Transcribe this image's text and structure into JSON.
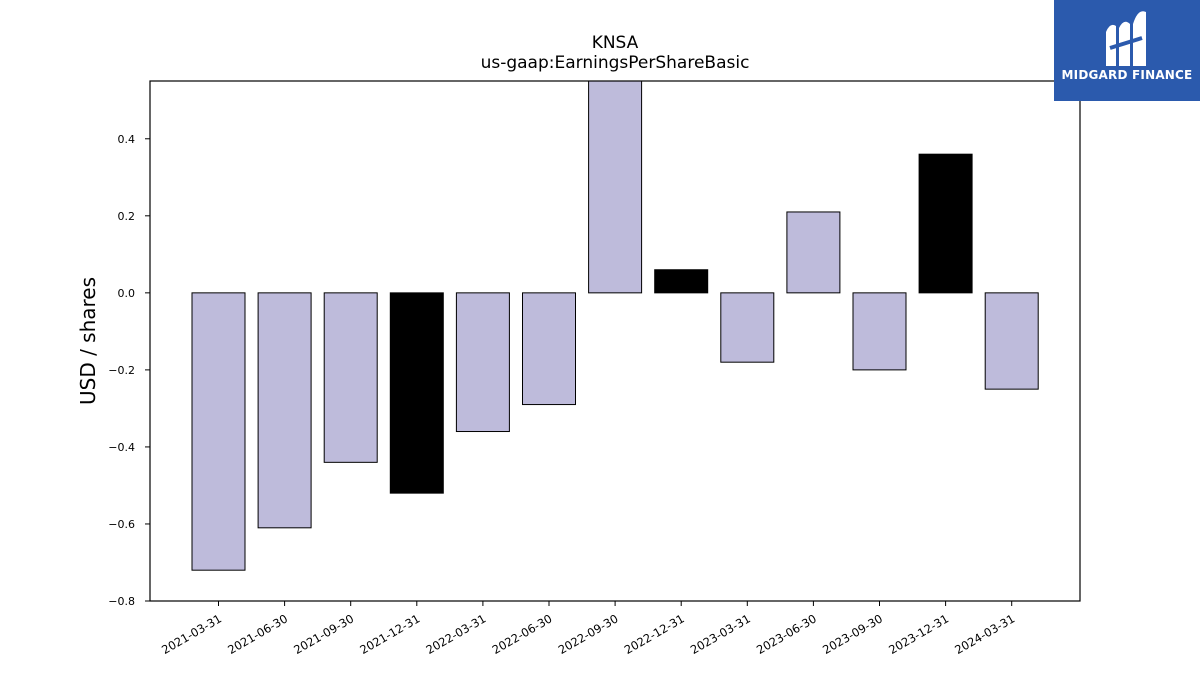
{
  "logo": {
    "text": "MIDGARD FINANCE",
    "icon": "midgard-m-icon",
    "background": "#2b5aad"
  },
  "chart_data": {
    "type": "bar",
    "title": "KNSA",
    "subtitle": "us-gaap:EarningsPerShareBasic",
    "xlabel": "",
    "ylabel": "USD / shares",
    "ylim": [
      -0.8,
      0.55
    ],
    "yticks": [
      -0.8,
      -0.6,
      -0.4,
      -0.2,
      0.0,
      0.2,
      0.4
    ],
    "ytick_labels": [
      "−0.8",
      "−0.6",
      "−0.4",
      "−0.2",
      "0.0",
      "0.2",
      "0.4"
    ],
    "grid": false,
    "categories": [
      "2021-03-31",
      "2021-06-30",
      "2021-09-30",
      "2021-12-31",
      "2022-03-31",
      "2022-06-30",
      "2022-09-30",
      "2022-12-31",
      "2023-03-31",
      "2023-06-30",
      "2023-09-30",
      "2023-12-31",
      "2024-03-31"
    ],
    "values": [
      -0.72,
      -0.61,
      -0.44,
      -0.52,
      -0.36,
      -0.29,
      0.61,
      0.06,
      -0.18,
      0.21,
      -0.2,
      0.36,
      -0.25
    ],
    "bar_colors": [
      "#bebbdb",
      "#bebbdb",
      "#bebbdb",
      "#000000",
      "#bebbdb",
      "#bebbdb",
      "#bebbdb",
      "#000000",
      "#bebbdb",
      "#bebbdb",
      "#bebbdb",
      "#000000",
      "#bebbdb"
    ]
  }
}
